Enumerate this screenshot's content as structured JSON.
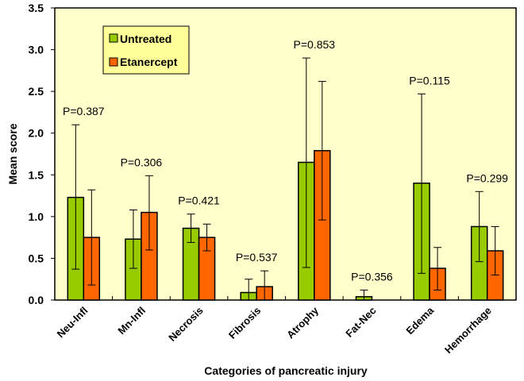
{
  "chart_data": {
    "type": "bar",
    "title": "",
    "xlabel": "Categories of pancreatic injury",
    "ylabel": "Mean score",
    "ylim": [
      0,
      3.5
    ],
    "yticks": [
      "0.0",
      "0.5",
      "1.0",
      "1.5",
      "2.0",
      "2.5",
      "3.0",
      "3.5"
    ],
    "ytick_values": [
      0,
      0.5,
      1.0,
      1.5,
      2.0,
      2.5,
      3.0,
      3.5
    ],
    "grid": false,
    "legend_position": "top-left",
    "categories": [
      "Neu-Infl",
      "Mn-Infl",
      "Necrosis",
      "Fibrosis",
      "Atrophy",
      "Fat-Nec",
      "Edema",
      "Hemorrhage"
    ],
    "series": [
      {
        "name": "Untreated",
        "color": "#99cc00",
        "values": [
          1.23,
          0.73,
          0.86,
          0.09,
          1.65,
          0.04,
          1.4,
          0.88
        ],
        "error_upper": [
          2.1,
          1.08,
          1.03,
          0.25,
          2.9,
          0.12,
          2.47,
          1.3
        ],
        "error_lower": [
          0.37,
          0.38,
          0.69,
          0.0,
          0.39,
          0.0,
          0.32,
          0.46
        ]
      },
      {
        "name": "Etanercept",
        "color": "#ff6600",
        "values": [
          0.75,
          1.05,
          0.75,
          0.16,
          1.79,
          0.0,
          0.38,
          0.59
        ],
        "error_upper": [
          1.32,
          1.49,
          0.91,
          0.35,
          2.62,
          0.0,
          0.63,
          0.88
        ],
        "error_lower": [
          0.18,
          0.6,
          0.59,
          0.0,
          0.96,
          0.0,
          0.12,
          0.3
        ]
      }
    ],
    "annotations": [
      "P=0.387",
      "P=0.306",
      "P=0.421",
      "P=0.537",
      "P=0.853",
      "P=0.356",
      "P=0.115",
      "P=0.299"
    ],
    "plot_background": "#ffffcc",
    "legend_background": "#ffff99"
  }
}
